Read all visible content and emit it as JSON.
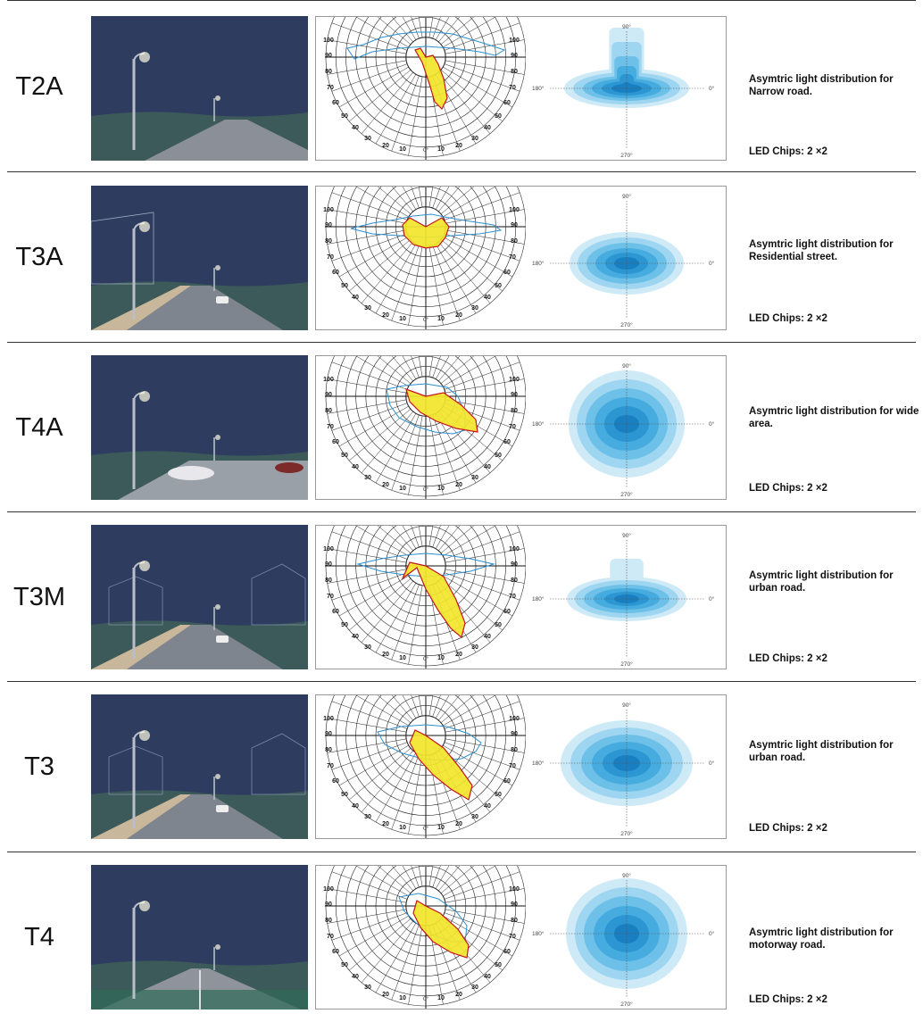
{
  "colors": {
    "sky": "#2e3c60",
    "polar_fill": "#f2e52a",
    "polar_outline": "#c4151c",
    "polar_transverse": "#2b8fcf",
    "iso_levels": [
      "#cfeaf7",
      "#9ed5f0",
      "#6dc0e8",
      "#46acdf",
      "#2b96d2",
      "#1a7fc0"
    ]
  },
  "polar_labels": {
    "left": [
      "100",
      "90",
      "80",
      "70",
      "60",
      "50",
      "40",
      "30",
      "20",
      "10"
    ],
    "right": [
      "100",
      "90",
      "80",
      "70",
      "60",
      "50",
      "40",
      "30",
      "20",
      "10"
    ],
    "zero": "0°"
  },
  "iso_labels": {
    "top": "90°",
    "left": "180°",
    "right": "0°",
    "bottom": "270°"
  },
  "rows": [
    {
      "type": "T2A",
      "description": "Asymtric light distribution for Narrow road.",
      "chips": "LED Chips: 2 ×2",
      "scene": "Narrow road"
    },
    {
      "type": "T3A",
      "description": "Asymtric light distribution for Residential street.",
      "chips": "LED Chips: 2 ×2",
      "scene": "Residential street"
    },
    {
      "type": "T4A",
      "description": "Asymtric light distribution for wide area.",
      "chips": "LED Chips: 2 ×2",
      "scene": "Wide area"
    },
    {
      "type": "T3M",
      "description": "Asymtric light distribution for urban road.",
      "chips": "LED Chips: 2 ×2",
      "scene": "Urban road"
    },
    {
      "type": "T3",
      "description": "Asymtric light distribution for urban road.",
      "chips": "LED Chips: 2 ×2",
      "scene": "Urban road"
    },
    {
      "type": "T4",
      "description": "Asymtric light distribution for motorway road.",
      "chips": "LED Chips: 2 ×2",
      "scene": "Motorway road"
    }
  ]
}
